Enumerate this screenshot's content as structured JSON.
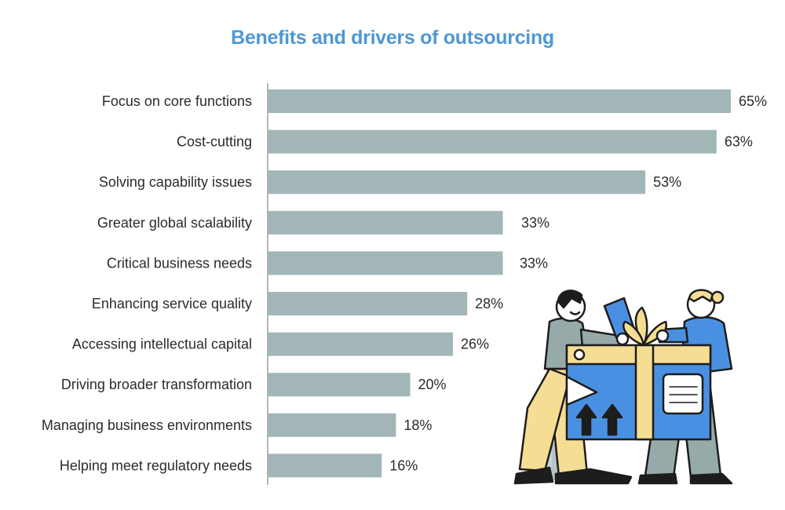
{
  "chart_data": {
    "type": "bar",
    "orientation": "horizontal",
    "title": "Benefits and drivers of outsourcing",
    "categories": [
      "Focus on core functions",
      "Cost-cutting",
      "Solving capability issues",
      "Greater global scalability",
      "Critical business needs",
      "Enhancing service quality",
      "Accessing intellectual capital",
      "Driving broader transformation",
      "Managing business environments",
      "Helping meet regulatory needs"
    ],
    "values": [
      65,
      63,
      53,
      33,
      33,
      28,
      26,
      20,
      18,
      16
    ],
    "value_labels": [
      "65%",
      "63%",
      "53%",
      "33%",
      "33%",
      "28%",
      "26%",
      "20%",
      "18%",
      "16%"
    ],
    "unit": "%",
    "xlim": [
      0,
      65
    ],
    "grid": false,
    "legend": "none",
    "bar_color": "#a2b6b8",
    "title_color": "#4e98d4"
  },
  "illustration": {
    "name": "two-people-holding-gift-box-illustration",
    "colors": {
      "box_blue": "#4a90e2",
      "box_yellow": "#f6dd94",
      "outline": "#1d1d1d",
      "sweater_gray": "#96aaa9",
      "plant": "#b6c3c8"
    }
  }
}
